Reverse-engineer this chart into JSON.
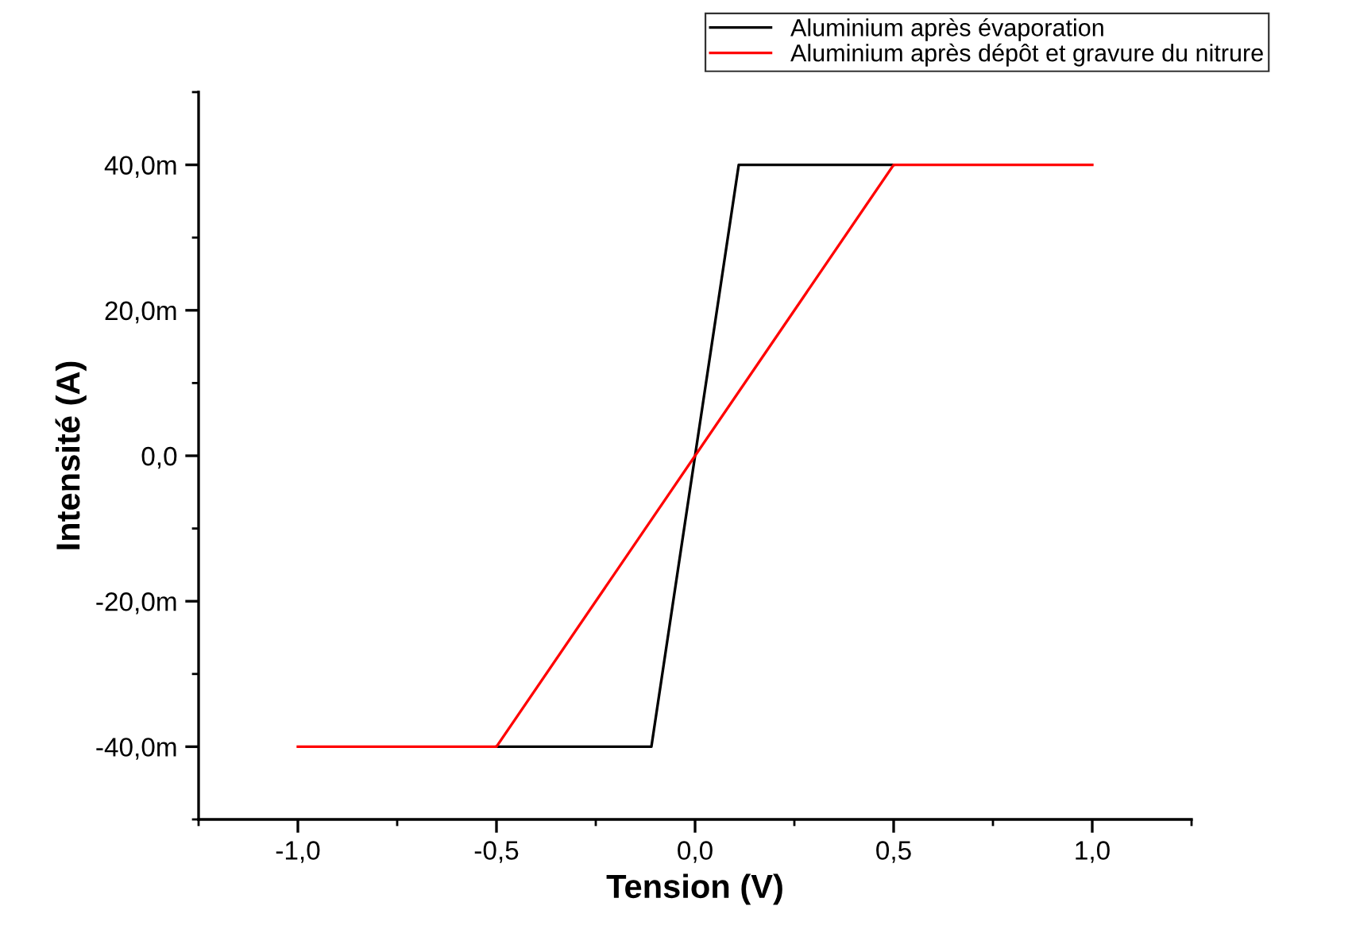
{
  "chart_data": {
    "type": "line",
    "xlabel": "Tension (V)",
    "ylabel": "Intensité (A)",
    "series": [
      {
        "name": "Aluminium après évaporation",
        "color": "#000000",
        "x": [
          -0.5,
          -0.11,
          0.11,
          0.5
        ],
        "values": [
          -40,
          -40,
          40,
          40
        ]
      },
      {
        "name": "Aluminium après dépôt et gravure du nitrure",
        "color": "#ff0000",
        "x": [
          -1.0,
          -0.5,
          0.5,
          1.0
        ],
        "values": [
          -40,
          -40,
          40,
          40
        ]
      }
    ],
    "xlim": [
      -1.25,
      1.25
    ],
    "xticks": [
      {
        "value": -1.0,
        "label": "-1,0"
      },
      {
        "value": -0.5,
        "label": "-0,5"
      },
      {
        "value": 0.0,
        "label": "0,0"
      },
      {
        "value": 0.5,
        "label": "0,5"
      },
      {
        "value": 1.0,
        "label": "1,0"
      }
    ],
    "ylim": [
      -50,
      50
    ],
    "yticks": [
      {
        "value": -40,
        "label": "-40,0m"
      },
      {
        "value": -20,
        "label": "-20,0m"
      },
      {
        "value": 0,
        "label": "0,0"
      },
      {
        "value": 20,
        "label": "20,0m"
      },
      {
        "value": 40,
        "label": "40,0m"
      }
    ],
    "grid": false,
    "legend": "top right",
    "marker": "none",
    "line_style": "solid"
  }
}
